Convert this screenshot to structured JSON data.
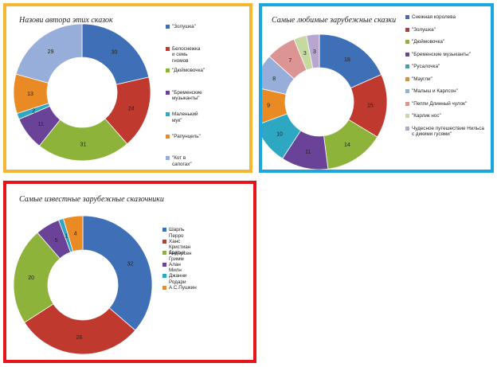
{
  "chart_data": [
    {
      "type": "donut",
      "title": "Назови автора этих сказок",
      "categories": [
        "\"Золушка\"",
        "Белоснежка и семь гномов",
        "\"Дюймовочка\"",
        "\"Бременские музыканты\"",
        "Маленький мук\"",
        "\"Рапунцель\"",
        "\"Кот в сапогах\""
      ],
      "values": [
        30,
        24,
        31,
        11,
        2,
        13,
        29
      ],
      "colors": [
        "#3f6fb6",
        "#c0392f",
        "#8eb33b",
        "#6a4398",
        "#2ea7c3",
        "#ea8a25",
        "#96aed9"
      ],
      "legend": "right"
    },
    {
      "type": "donut",
      "title": "Самые любимые зарубежные сказки",
      "categories": [
        "Снежная королева",
        "\"Золушка\"",
        "\"Дюймовочка\"",
        "\"Бременские музыканты\"",
        "\"Русалочка\"",
        "\"Маугли\"",
        "\"Малыш и Карлсон\"",
        "\"Пеппи Длинный чулок\"",
        "\"Карлик нос\"",
        "Чудесное путешествие Нильса с дикими гусями\""
      ],
      "values": [
        18,
        15,
        14,
        11,
        10,
        9,
        8,
        7,
        3,
        3
      ],
      "colors": [
        "#3f6fb6",
        "#c0392f",
        "#8eb33b",
        "#6a4398",
        "#2ea7c3",
        "#ea8a25",
        "#96aed9",
        "#dc9592",
        "#c6d9a0",
        "#b9a6d0"
      ],
      "legend": "right"
    },
    {
      "type": "donut",
      "title": "Самые известные зарубежные сказочники",
      "categories": [
        "Шарль Перро",
        "Ханс Кристиан Андерсен",
        "братья Гримм",
        "Алан Милн",
        "Джанни Родари",
        "А.С.Пушкин"
      ],
      "values": [
        32,
        26,
        20,
        5,
        1,
        4
      ],
      "colors": [
        "#3f6fb6",
        "#c0392f",
        "#8eb33b",
        "#6a4398",
        "#2ea7c3",
        "#ea8a25"
      ],
      "legend": "right"
    }
  ]
}
